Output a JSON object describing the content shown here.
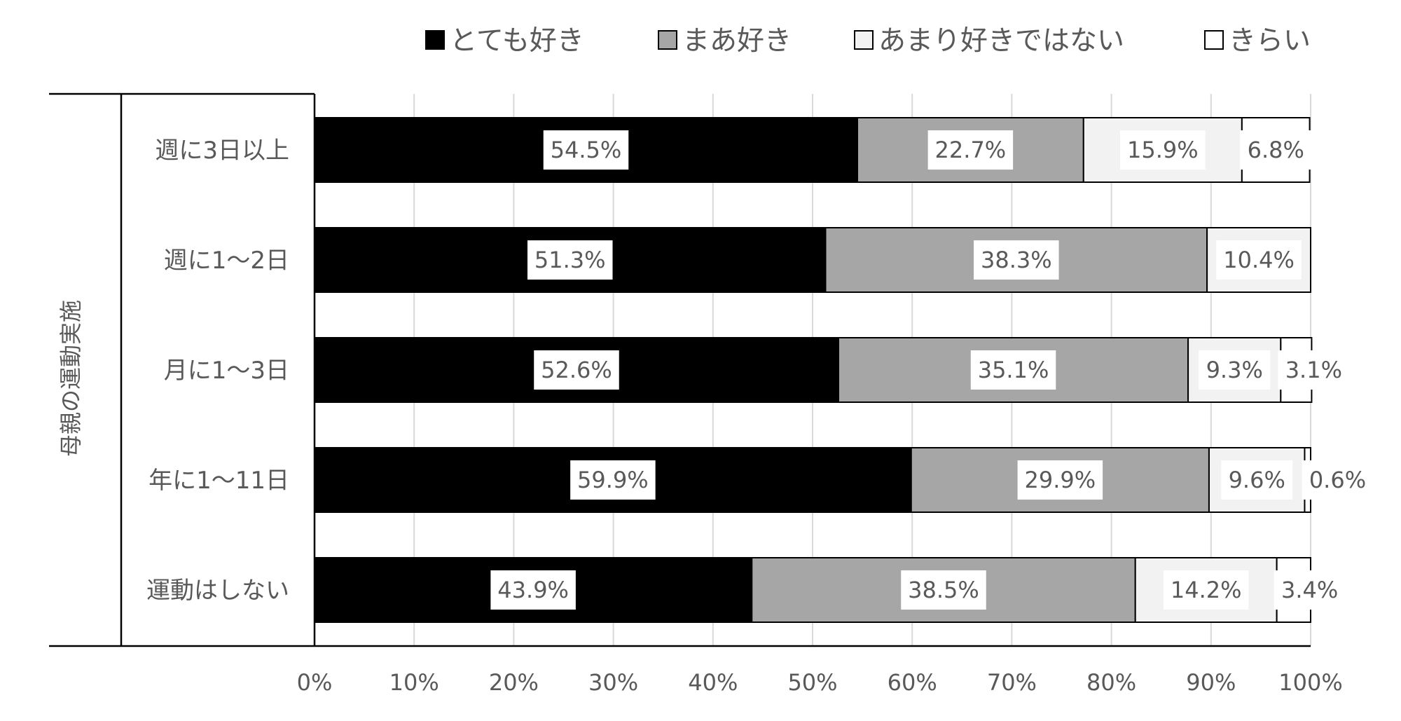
{
  "chart_data": {
    "type": "bar",
    "orientation": "horizontal",
    "stacked": "percent",
    "group_label": "母親の運動実施",
    "categories": [
      "週に3日以上",
      "週に1～2日",
      "月に1～3日",
      "年に1～11日",
      "運動はしない"
    ],
    "series": [
      {
        "name": "とても好き",
        "color": "#000000",
        "values": [
          54.5,
          51.3,
          52.6,
          59.9,
          43.9
        ]
      },
      {
        "name": "まあ好き",
        "color": "#a6a6a6",
        "values": [
          22.7,
          38.3,
          35.1,
          29.9,
          38.5
        ]
      },
      {
        "name": "あまり好きではない",
        "color": "#f2f2f2",
        "values": [
          15.9,
          10.4,
          9.3,
          9.6,
          14.2
        ]
      },
      {
        "name": "きらい",
        "color": "#ffffff",
        "values": [
          6.8,
          0,
          3.1,
          0.6,
          3.4
        ]
      }
    ],
    "data_labels": [
      [
        "54.5%",
        "22.7%",
        "15.9%",
        "6.8%"
      ],
      [
        "51.3%",
        "38.3%",
        "10.4%",
        ""
      ],
      [
        "52.6%",
        "35.1%",
        "9.3%",
        "3.1%"
      ],
      [
        "59.9%",
        "29.9%",
        "9.6%",
        "0.6%"
      ],
      [
        "43.9%",
        "38.5%",
        "14.2%",
        "3.4%"
      ]
    ],
    "x_ticks": [
      "0%",
      "10%",
      "20%",
      "30%",
      "40%",
      "50%",
      "60%",
      "70%",
      "80%",
      "90%",
      "100%"
    ],
    "xlim": [
      0,
      100
    ],
    "grid": true,
    "legend_position": "top"
  }
}
